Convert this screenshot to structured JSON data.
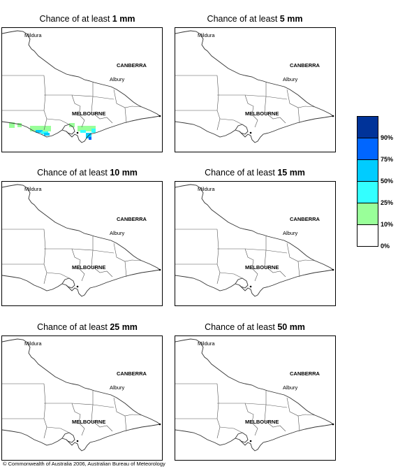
{
  "panels": [
    {
      "title_prefix": "Chance of at least ",
      "title_amount": "1 mm",
      "has_rain": true
    },
    {
      "title_prefix": "Chance of at least ",
      "title_amount": "5 mm",
      "has_rain": false
    },
    {
      "title_prefix": "Chance of at least ",
      "title_amount": "10 mm",
      "has_rain": false
    },
    {
      "title_prefix": "Chance of at least ",
      "title_amount": "15 mm",
      "has_rain": false
    },
    {
      "title_prefix": "Chance of at least ",
      "title_amount": "25 mm",
      "has_rain": false
    },
    {
      "title_prefix": "Chance of at least ",
      "title_amount": "50 mm",
      "has_rain": false
    }
  ],
  "places": {
    "mildura": "Mildura",
    "canberra": "CANBERRA",
    "albury": "Albury",
    "melbourne": "MELBOURNE"
  },
  "legend": {
    "colors": [
      "#003399",
      "#0066ff",
      "#00ccff",
      "#33ffff",
      "#99ff99",
      "#ffffff"
    ],
    "labels": [
      "90%",
      "75%",
      "50%",
      "25%",
      "10%",
      "0%"
    ]
  },
  "footer": "© Commonwealth of Australia 2006, Australian Bureau of Meteorology"
}
